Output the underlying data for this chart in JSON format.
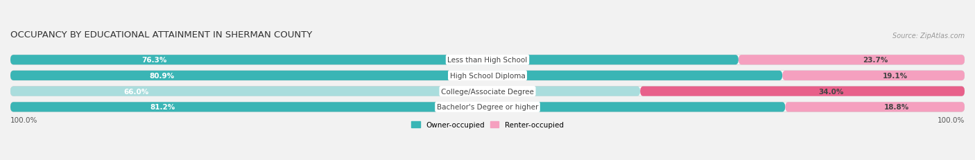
{
  "title": "OCCUPANCY BY EDUCATIONAL ATTAINMENT IN SHERMAN COUNTY",
  "source": "Source: ZipAtlas.com",
  "categories": [
    "Less than High School",
    "High School Diploma",
    "College/Associate Degree",
    "Bachelor's Degree or higher"
  ],
  "owner_pct": [
    76.3,
    80.9,
    66.0,
    81.2
  ],
  "renter_pct": [
    23.7,
    19.1,
    34.0,
    18.8
  ],
  "owner_colors": [
    "#3ab5b5",
    "#3ab5b5",
    "#aadddd",
    "#3ab5b5"
  ],
  "renter_colors": [
    "#f5a0bf",
    "#f5a0bf",
    "#e8608a",
    "#f5a0bf"
  ],
  "bar_height": 0.62,
  "background_color": "#f2f2f2",
  "title_fontsize": 9.5,
  "label_fontsize": 7.5,
  "source_fontsize": 7,
  "legend_fontsize": 7.5,
  "tick_fontsize": 7.5,
  "owner_legend_color": "#3ab5b5",
  "renter_legend_color": "#f5a0bf"
}
